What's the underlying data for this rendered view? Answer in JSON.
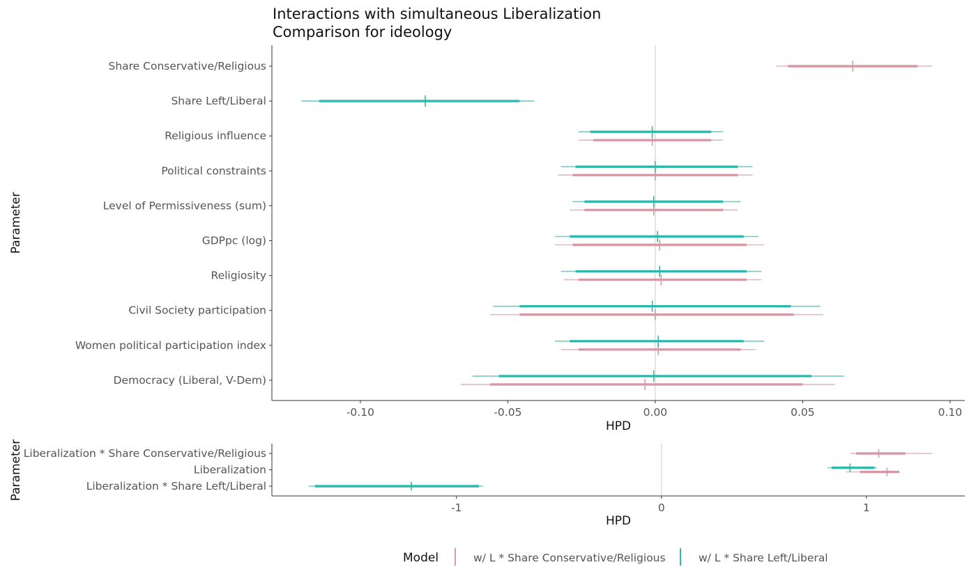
{
  "colors": {
    "conservative": "#d699a6",
    "left": "#2fb8ac",
    "axis": "#333333",
    "zero": "#dddddd"
  },
  "chart_data": [
    {
      "type": "interval",
      "title": "Interactions with simultaneous Liberalization",
      "subtitle": "Comparison for ideology",
      "xlabel": "HPD",
      "ylabel": "Parameter",
      "xlim": [
        -0.13,
        0.105
      ],
      "xticks": [
        -0.1,
        -0.05,
        0.0,
        0.05,
        0.1
      ],
      "xtick_labels": [
        "-0.10",
        "-0.05",
        "0.00",
        "0.05",
        "0.10"
      ],
      "zero_line": 0,
      "categories": [
        "Share Conservative/Religious",
        "Share Left/Liberal",
        "Religious influence",
        "Political constraints",
        "Level of Permissiveness (sum)",
        "GDPpc (log)",
        "Religiosity",
        "Civil Society participation",
        "Women political participation index",
        "Democracy (Liberal, V-Dem)"
      ],
      "series": [
        {
          "name": "w/ L * Share Conservative/Religious",
          "color_key": "conservative",
          "points": [
            {
              "param": "Share Conservative/Religious",
              "median": 0.067,
              "inner": [
                0.045,
                0.089
              ],
              "outer": [
                0.041,
                0.094
              ]
            },
            {
              "param": "Religious influence",
              "median": -0.001,
              "inner": [
                -0.021,
                0.019
              ],
              "outer": [
                -0.026,
                0.023
              ]
            },
            {
              "param": "Political constraints",
              "median": 0.0,
              "inner": [
                -0.028,
                0.028
              ],
              "outer": [
                -0.033,
                0.033
              ]
            },
            {
              "param": "Level of Permissiveness (sum)",
              "median": -0.0005,
              "inner": [
                -0.024,
                0.023
              ],
              "outer": [
                -0.029,
                0.028
              ]
            },
            {
              "param": "GDPpc (log)",
              "median": 0.0015,
              "inner": [
                -0.028,
                0.031
              ],
              "outer": [
                -0.034,
                0.037
              ]
            },
            {
              "param": "Religiosity",
              "median": 0.002,
              "inner": [
                -0.026,
                0.031
              ],
              "outer": [
                -0.031,
                0.036
              ]
            },
            {
              "param": "Civil Society participation",
              "median": 0.0,
              "inner": [
                -0.046,
                0.047
              ],
              "outer": [
                -0.056,
                0.057
              ]
            },
            {
              "param": "Women political participation index",
              "median": 0.001,
              "inner": [
                -0.026,
                0.029
              ],
              "outer": [
                -0.032,
                0.034
              ]
            },
            {
              "param": "Democracy (Liberal, V-Dem)",
              "median": -0.0035,
              "inner": [
                -0.056,
                0.05
              ],
              "outer": [
                -0.066,
                0.061
              ]
            }
          ]
        },
        {
          "name": "w/ L * Share Left/Liberal",
          "color_key": "left",
          "points": [
            {
              "param": "Share Left/Liberal",
              "median": -0.078,
              "inner": [
                -0.114,
                -0.046
              ],
              "outer": [
                -0.12,
                -0.041
              ]
            },
            {
              "param": "Religious influence",
              "median": -0.001,
              "inner": [
                -0.022,
                0.019
              ],
              "outer": [
                -0.026,
                0.023
              ]
            },
            {
              "param": "Political constraints",
              "median": 0.0,
              "inner": [
                -0.027,
                0.028
              ],
              "outer": [
                -0.032,
                0.033
              ]
            },
            {
              "param": "Level of Permissiveness (sum)",
              "median": -0.0005,
              "inner": [
                -0.024,
                0.023
              ],
              "outer": [
                -0.028,
                0.029
              ]
            },
            {
              "param": "GDPpc (log)",
              "median": 0.0008,
              "inner": [
                -0.029,
                0.03
              ],
              "outer": [
                -0.034,
                0.035
              ]
            },
            {
              "param": "Religiosity",
              "median": 0.0015,
              "inner": [
                -0.027,
                0.031
              ],
              "outer": [
                -0.032,
                0.036
              ]
            },
            {
              "param": "Civil Society participation",
              "median": -0.001,
              "inner": [
                -0.046,
                0.046
              ],
              "outer": [
                -0.055,
                0.056
              ]
            },
            {
              "param": "Women political participation index",
              "median": 0.001,
              "inner": [
                -0.029,
                0.03
              ],
              "outer": [
                -0.034,
                0.037
              ]
            },
            {
              "param": "Democracy (Liberal, V-Dem)",
              "median": -0.0005,
              "inner": [
                -0.053,
                0.053
              ],
              "outer": [
                -0.062,
                0.064
              ]
            }
          ]
        }
      ]
    },
    {
      "type": "interval",
      "xlabel": "HPD",
      "ylabel": "Parameter",
      "xlim": [
        -1.9,
        1.48
      ],
      "xticks": [
        -1,
        0,
        1
      ],
      "xtick_labels": [
        "-1",
        "0",
        "1"
      ],
      "zero_line": 0,
      "categories": [
        "Liberalization * Share Conservative/Religious",
        "Liberalization",
        "Liberalization * Share Left/Liberal"
      ],
      "series": [
        {
          "name": "w/ L * Share Conservative/Religious",
          "color_key": "conservative",
          "points": [
            {
              "param": "Liberalization * Share Conservative/Religious",
              "median": 1.06,
              "inner": [
                0.95,
                1.19
              ],
              "outer": [
                0.92,
                1.32
              ]
            },
            {
              "param": "Liberalization",
              "median": 1.1,
              "inner": [
                0.97,
                1.16
              ],
              "outer": [
                0.9,
                1.16
              ]
            }
          ]
        },
        {
          "name": "w/ L * Share Left/Liberal",
          "color_key": "left",
          "points": [
            {
              "param": "Liberalization",
              "median": 0.92,
              "inner": [
                0.83,
                1.04
              ],
              "outer": [
                0.81,
                1.05
              ]
            },
            {
              "param": "Liberalization * Share Left/Liberal",
              "median": -1.22,
              "inner": [
                -1.69,
                -0.89
              ],
              "outer": [
                -1.72,
                -0.87
              ]
            }
          ]
        }
      ]
    }
  ],
  "legend": {
    "title": "Model",
    "items": [
      {
        "label": "w/ L * Share Conservative/Religious",
        "color_key": "conservative"
      },
      {
        "label": "w/ L * Share Left/Liberal",
        "color_key": "left"
      }
    ]
  }
}
